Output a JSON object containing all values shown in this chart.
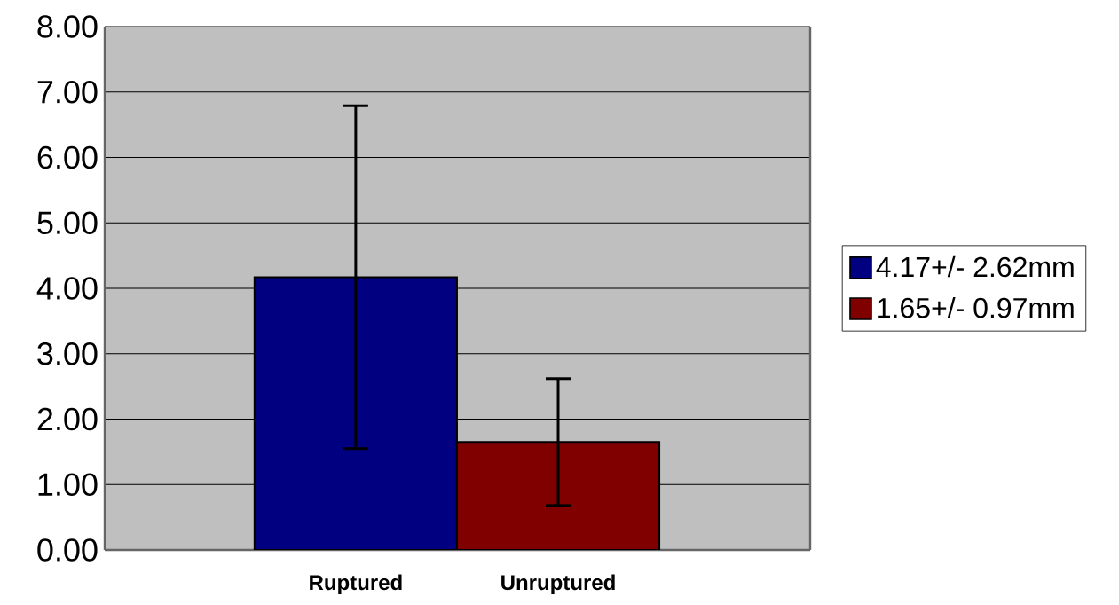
{
  "chart_data": {
    "type": "bar",
    "categories": [
      "Ruptured",
      "Unruptured"
    ],
    "series": [
      {
        "name": "4.17+/- 2.62mm",
        "color": "#000080",
        "values": [
          4.17,
          null
        ],
        "errors": [
          2.62,
          null
        ]
      },
      {
        "name": "1.65+/- 0.97mm",
        "color": "#800000",
        "values": [
          null,
          1.65
        ],
        "errors": [
          null,
          0.97
        ]
      }
    ],
    "ylim": [
      0,
      8
    ],
    "yticks": [
      {
        "value": 0,
        "label": "0.00"
      },
      {
        "value": 1,
        "label": "1.00"
      },
      {
        "value": 2,
        "label": "2.00"
      },
      {
        "value": 3,
        "label": "3.00"
      },
      {
        "value": 4,
        "label": "4.00"
      },
      {
        "value": 5,
        "label": "5.00"
      },
      {
        "value": 6,
        "label": "6.00"
      },
      {
        "value": 7,
        "label": "7.00"
      },
      {
        "value": 8,
        "label": "8.00"
      }
    ],
    "grid": "y",
    "legend": "right"
  }
}
